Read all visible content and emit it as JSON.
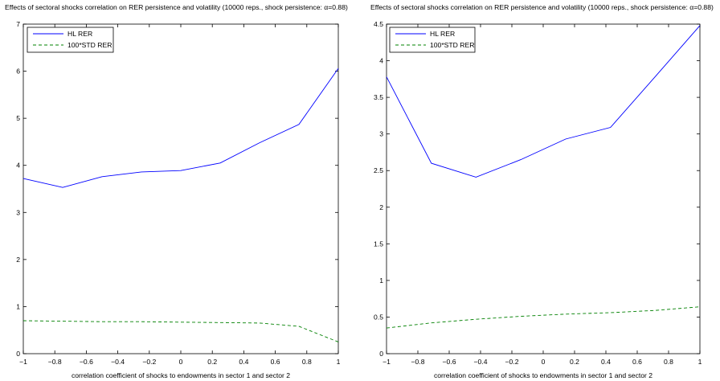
{
  "chart_data": [
    {
      "type": "line",
      "title": "Effects of sectoral shocks correlation on RER persistence and volatility (10000 reps., shock persistence: α=0.88)",
      "xlabel": "correlation coefficient of shocks to endowments in sector 1 and sector 2",
      "ylabel": "",
      "xlim": [
        -1,
        1
      ],
      "ylim": [
        0,
        7
      ],
      "xticks": [
        "−1",
        "−0.8",
        "−0.6",
        "−0.4",
        "−0.2",
        "0",
        "0.2",
        "0.4",
        "0.6",
        "0.8",
        "1"
      ],
      "yticks": [
        "0",
        "1",
        "2",
        "3",
        "4",
        "5",
        "6",
        "7"
      ],
      "legend_position": "top-left",
      "grid": false,
      "series": [
        {
          "name": "HL RER",
          "color": "#0000ff",
          "style": "solid",
          "x": [
            -1,
            -0.75,
            -0.5,
            -0.25,
            0,
            0.25,
            0.5,
            0.75,
            1
          ],
          "y": [
            3.72,
            3.53,
            3.76,
            3.86,
            3.89,
            4.05,
            4.48,
            4.87,
            6.06
          ]
        },
        {
          "name": "100*STD RER",
          "color": "#008000",
          "style": "dashed",
          "x": [
            -1,
            -0.75,
            -0.5,
            -0.25,
            0,
            0.25,
            0.5,
            0.75,
            1
          ],
          "y": [
            0.7,
            0.69,
            0.68,
            0.68,
            0.67,
            0.66,
            0.65,
            0.58,
            0.25
          ]
        }
      ]
    },
    {
      "type": "line",
      "title": "Effects of sectoral shocks correlation on RER persistence and volatility (10000 reps., shock persistence: α=0.88)",
      "xlabel": "correlation coefficient of shocks to endowments in sector 1 and sector 2",
      "ylabel": "",
      "xlim": [
        -1,
        1
      ],
      "ylim": [
        0,
        4.5
      ],
      "xticks": [
        "−1",
        "−0.8",
        "−0.6",
        "−0.4",
        "−0.2",
        "0",
        "0.2",
        "0.4",
        "0.6",
        "0.8",
        "1"
      ],
      "yticks": [
        "0",
        "0.5",
        "1",
        "1.5",
        "2",
        "2.5",
        "3",
        "3.5",
        "4",
        "4.5"
      ],
      "legend_position": "top-left",
      "grid": false,
      "series": [
        {
          "name": "HL RER",
          "color": "#0000ff",
          "style": "solid",
          "x": [
            -1,
            -0.714,
            -0.429,
            -0.143,
            0.143,
            0.429,
            0.714,
            1
          ],
          "y": [
            3.78,
            2.6,
            2.41,
            2.65,
            2.93,
            3.09,
            3.78,
            4.48
          ]
        },
        {
          "name": "100*STD RER",
          "color": "#008000",
          "style": "dashed",
          "x": [
            -1,
            -0.714,
            -0.429,
            -0.143,
            0.143,
            0.429,
            0.714,
            1
          ],
          "y": [
            0.35,
            0.42,
            0.47,
            0.51,
            0.54,
            0.56,
            0.59,
            0.64
          ]
        }
      ]
    }
  ]
}
